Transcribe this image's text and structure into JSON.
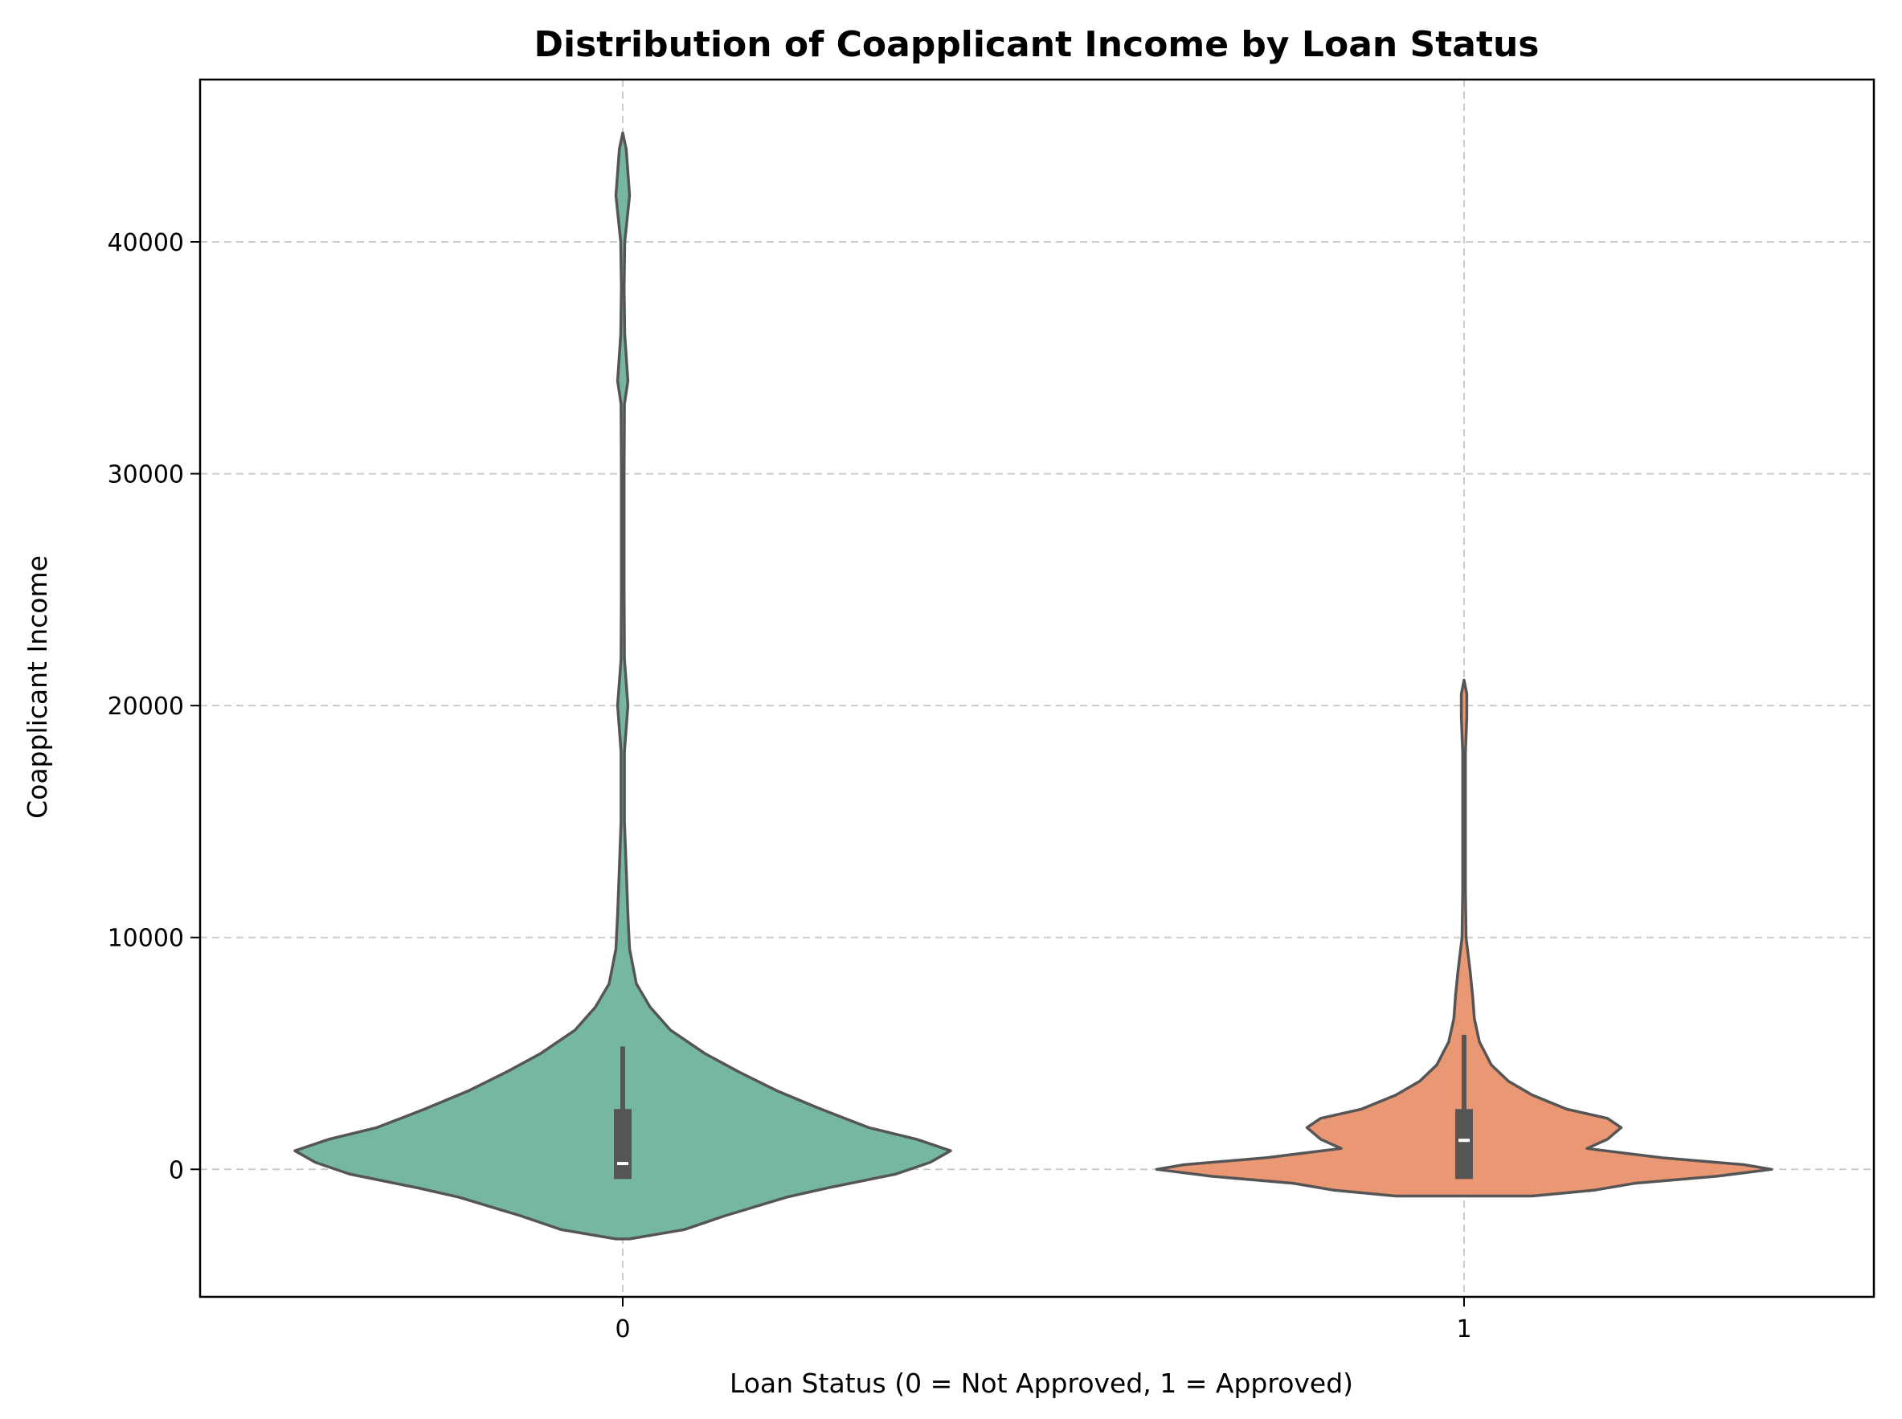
{
  "chart_data": {
    "type": "violin",
    "title": "Distribution of Coapplicant Income by Loan Status",
    "xlabel": "Loan Status (0 = Not Approved, 1 = Approved)",
    "ylabel": "Coapplicant Income",
    "categories": [
      "0",
      "1"
    ],
    "ylim": [
      -5500,
      47000
    ],
    "yticks": [
      0,
      10000,
      20000,
      30000,
      40000
    ],
    "ytick_labels": [
      "0",
      "10000",
      "20000",
      "30000",
      "40000"
    ],
    "grid": true,
    "colors": {
      "0": "#76b7a2",
      "1": "#ea9774",
      "outline": "#555555",
      "grid": "#cccccc"
    },
    "violins": [
      {
        "category": "0",
        "quartiles": {
          "q1": 0,
          "median": 250,
          "q3": 2600,
          "whisker_low": 0,
          "whisker_high": 5300
        },
        "density_profile": [
          [
            -3000,
            0.02
          ],
          [
            -2600,
            0.18
          ],
          [
            -2000,
            0.3
          ],
          [
            -1200,
            0.48
          ],
          [
            -800,
            0.6
          ],
          [
            -200,
            0.8
          ],
          [
            300,
            0.9
          ],
          [
            800,
            0.96
          ],
          [
            1300,
            0.86
          ],
          [
            1800,
            0.72
          ],
          [
            2600,
            0.58
          ],
          [
            3400,
            0.45
          ],
          [
            4200,
            0.34
          ],
          [
            5000,
            0.24
          ],
          [
            6000,
            0.14
          ],
          [
            7000,
            0.08
          ],
          [
            8000,
            0.04
          ],
          [
            9500,
            0.02
          ],
          [
            11000,
            0.015
          ],
          [
            13000,
            0.01
          ],
          [
            15000,
            0.005
          ],
          [
            18000,
            0.005
          ],
          [
            20000,
            0.015
          ],
          [
            22000,
            0.005
          ],
          [
            25000,
            0.004
          ],
          [
            30000,
            0.004
          ],
          [
            33000,
            0.005
          ],
          [
            34000,
            0.015
          ],
          [
            36000,
            0.006
          ],
          [
            38000,
            0.004
          ],
          [
            40000,
            0.006
          ],
          [
            42000,
            0.02
          ],
          [
            44000,
            0.01
          ],
          [
            44700,
            0
          ]
        ]
      },
      {
        "category": "1",
        "quartiles": {
          "q1": 0,
          "median": 1250,
          "q3": 2600,
          "whisker_low": 0,
          "whisker_high": 5800
        },
        "density_profile": [
          [
            -1150,
            0.2
          ],
          [
            -900,
            0.38
          ],
          [
            -600,
            0.5
          ],
          [
            -300,
            0.74
          ],
          [
            0,
            0.9
          ],
          [
            200,
            0.82
          ],
          [
            500,
            0.58
          ],
          [
            900,
            0.36
          ],
          [
            1300,
            0.42
          ],
          [
            1800,
            0.46
          ],
          [
            2200,
            0.42
          ],
          [
            2600,
            0.3
          ],
          [
            3200,
            0.2
          ],
          [
            3800,
            0.13
          ],
          [
            4500,
            0.08
          ],
          [
            5500,
            0.045
          ],
          [
            6500,
            0.03
          ],
          [
            7500,
            0.025
          ],
          [
            8500,
            0.018
          ],
          [
            10000,
            0.006
          ],
          [
            12000,
            0.004
          ],
          [
            15000,
            0.004
          ],
          [
            18000,
            0.004
          ],
          [
            19500,
            0.008
          ],
          [
            20500,
            0.008
          ],
          [
            21100,
            0
          ]
        ]
      }
    ]
  }
}
